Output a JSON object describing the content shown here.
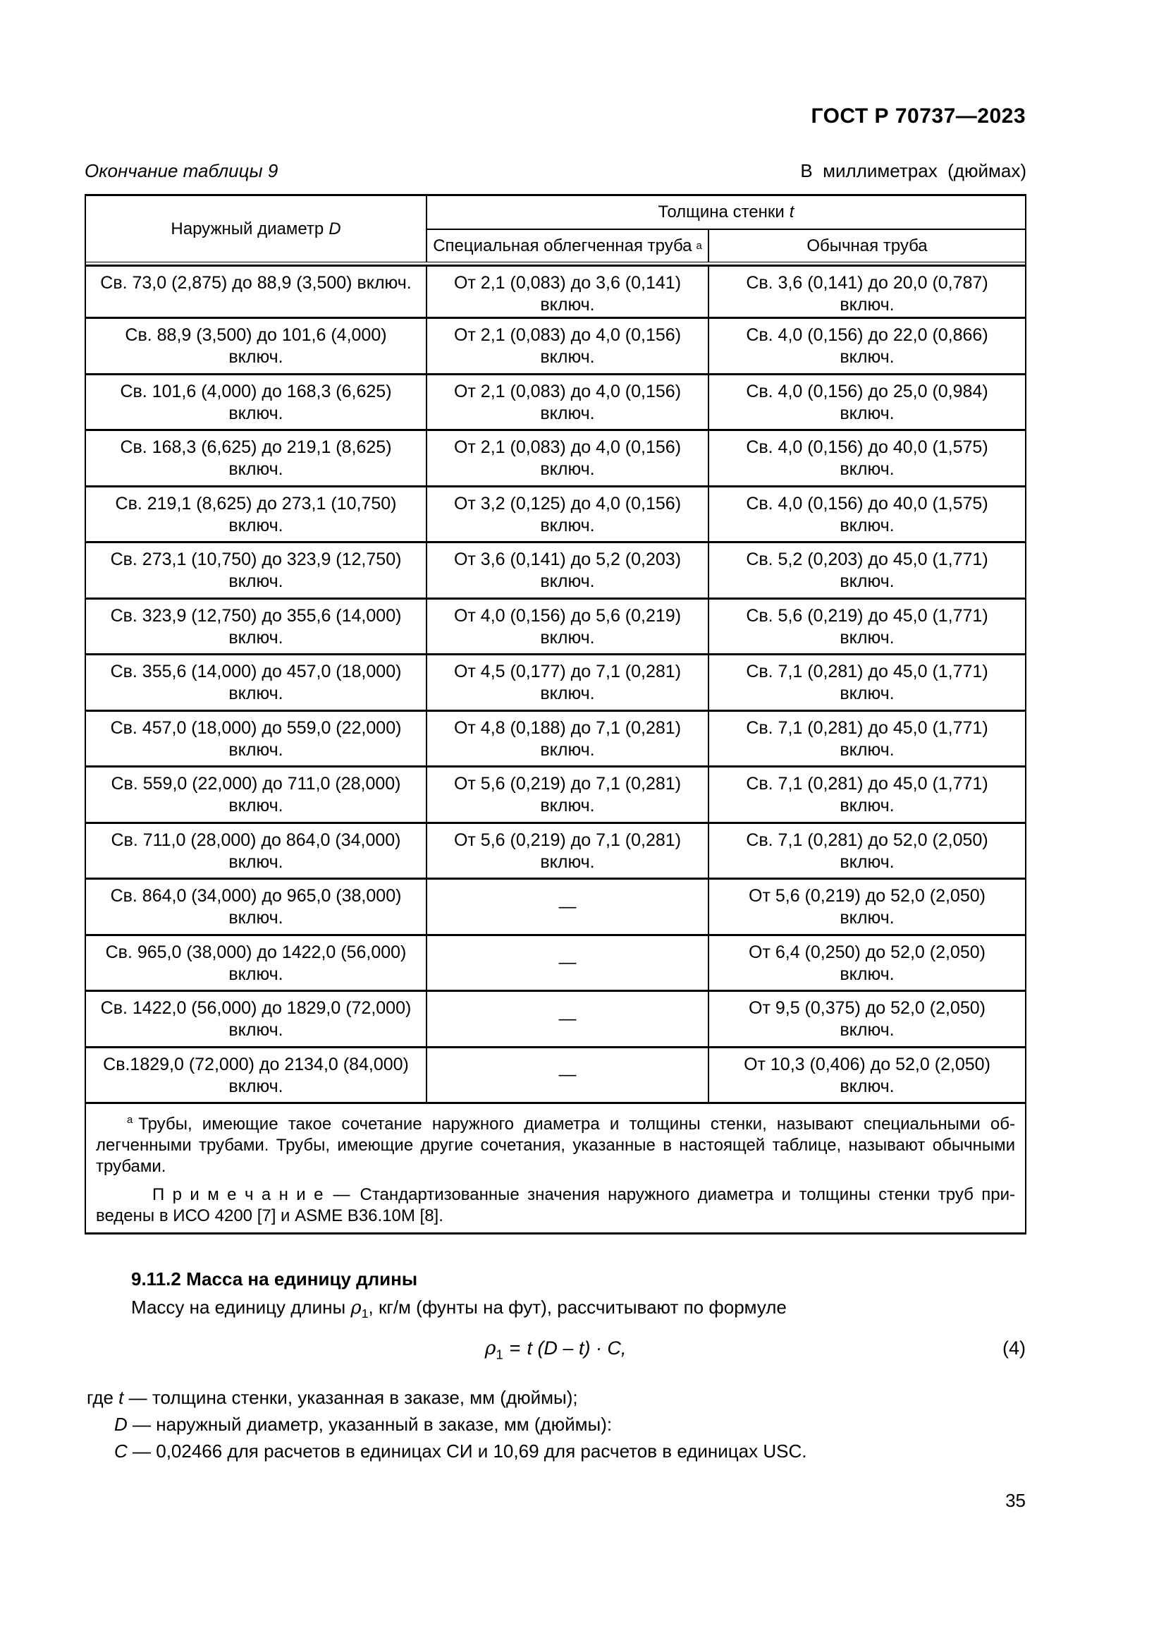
{
  "page": {
    "doc_number": "ГОСТ Р 70737—2023",
    "table_caption": "Окончание таблицы 9",
    "units_note": "В  миллиметрах  (дюймах)",
    "page_number": "35"
  },
  "table": {
    "col1_header": {
      "label": "Наружный диаметр",
      "symbol": "D"
    },
    "span_header": {
      "label": "Толщина стенки",
      "symbol": "t"
    },
    "col2_header": {
      "label": "Специальная облегченная труба",
      "sup": "а"
    },
    "col3_header": {
      "label": "Обычная труба"
    },
    "rows": [
      {
        "d": "Св. 73,0 (2,875) до 88,9 (3,500) включ.",
        "special": "От 2,1 (0,083) до 3,6 (0,141)\nвключ.",
        "regular": "Св. 3,6 (0,141) до 20,0 (0,787)\nвключ."
      },
      {
        "d": "Св. 88,9 (3,500) до 101,6 (4,000)\nвключ.",
        "special": "От 2,1 (0,083) до 4,0 (0,156)\nвключ.",
        "regular": "Св. 4,0 (0,156) до 22,0 (0,866)\nвключ."
      },
      {
        "d": "Св. 101,6 (4,000) до 168,3 (6,625)\nвключ.",
        "special": "От 2,1 (0,083) до 4,0 (0,156)\nвключ.",
        "regular": "Св. 4,0 (0,156) до 25,0 (0,984)\nвключ."
      },
      {
        "d": "Св. 168,3 (6,625) до 219,1 (8,625)\nвключ.",
        "special": "От 2,1 (0,083) до 4,0 (0,156)\nвключ.",
        "regular": "Св. 4,0 (0,156) до 40,0 (1,575)\nвключ."
      },
      {
        "d": "Св. 219,1 (8,625) до 273,1 (10,750)\nвключ.",
        "special": "От 3,2 (0,125) до 4,0 (0,156)\nвключ.",
        "regular": "Св. 4,0 (0,156) до 40,0 (1,575)\nвключ."
      },
      {
        "d": "Св. 273,1 (10,750) до 323,9 (12,750)\nвключ.",
        "special": "От 3,6 (0,141) до 5,2 (0,203)\nвключ.",
        "regular": "Св. 5,2 (0,203) до 45,0 (1,771)\nвключ."
      },
      {
        "d": "Св. 323,9 (12,750) до 355,6 (14,000)\nвключ.",
        "special": "От 4,0 (0,156) до 5,6 (0,219)\nвключ.",
        "regular": "Св. 5,6 (0,219) до 45,0 (1,771)\nвключ."
      },
      {
        "d": "Св. 355,6 (14,000) до 457,0 (18,000)\nвключ.",
        "special": "От 4,5 (0,177) до 7,1 (0,281)\nвключ.",
        "regular": "Св. 7,1 (0,281) до 45,0 (1,771)\nвключ."
      },
      {
        "d": "Св. 457,0 (18,000) до 559,0 (22,000)\nвключ.",
        "special": "От 4,8 (0,188) до 7,1 (0,281)\nвключ.",
        "regular": "Св. 7,1 (0,281) до 45,0 (1,771)\nвключ."
      },
      {
        "d": "Св. 559,0 (22,000) до 711,0 (28,000)\nвключ.",
        "special": "От 5,6 (0,219) до 7,1 (0,281)\nвключ.",
        "regular": "Св. 7,1 (0,281) до 45,0 (1,771)\nвключ."
      },
      {
        "d": "Св. 711,0 (28,000) до 864,0 (34,000)\nвключ.",
        "special": "От 5,6 (0,219) до 7,1 (0,281)\nвключ.",
        "regular": "Св. 7,1 (0,281) до 52,0 (2,050)\nвключ."
      },
      {
        "d": "Св. 864,0 (34,000) до 965,0 (38,000)\nвключ.",
        "special": "—",
        "regular": "От 5,6 (0,219) до 52,0 (2,050)\nвключ."
      },
      {
        "d": "Св. 965,0 (38,000) до 1422,0 (56,000)\nвключ.",
        "special": "—",
        "regular": "От 6,4 (0,250) до 52,0 (2,050)\nвключ."
      },
      {
        "d": "Св. 1422,0 (56,000) до 1829,0 (72,000)\nвключ.",
        "special": "—",
        "regular": "От 9,5 (0,375) до 52,0 (2,050)\nвключ."
      },
      {
        "d": "Св.1829,0 (72,000) до 2134,0 (84,000)\nвключ.",
        "special": "—",
        "regular": "От 10,3 (0,406) до 52,0 (2,050)\nвключ."
      }
    ],
    "footnote": {
      "sup": "а",
      "line1": "Трубы, имеющие такое сочетание наружного диаметра и толщины стенки, называют специальными об-",
      "line2": "легченными трубами. Трубы, имеющие другие сочетания, указанные в настоящей таблице, называют обычными",
      "line3": "трубами.",
      "note_label": "П р и м е ч а н и е",
      "note_dash": "—",
      "note_line1": "Стандартизованные значения наружного диаметра и толщины стенки труб при-",
      "note_line2": "ведены в ИСО 4200 [7] и ASME B36.10M [8]."
    }
  },
  "section": {
    "heading": "9.11.2 Масса на единицу длины",
    "intro": {
      "pre": "Массу на единицу длины ",
      "sym": "ρ",
      "sub": "1",
      "post": ", кг/м (фунты на фут), рассчитывают по формуле"
    },
    "formula": {
      "sym": "ρ",
      "sub": "1",
      "eq": "=",
      "expr": "t (D – t) · C,",
      "number": "(4)"
    },
    "where": {
      "t": {
        "lead": "где ",
        "sym": "t",
        "text": " — толщина стенки, указанная в заказе, мм (дюймы);"
      },
      "d": {
        "lead": "",
        "sym": "D",
        "text": " — наружный диаметр, указанный в заказе, мм (дюймы):"
      },
      "c": {
        "lead": "",
        "sym": "C",
        "text": " — 0,02466 для расчетов в единицах СИ и 10,69 для расчетов в единицах USC."
      }
    }
  }
}
